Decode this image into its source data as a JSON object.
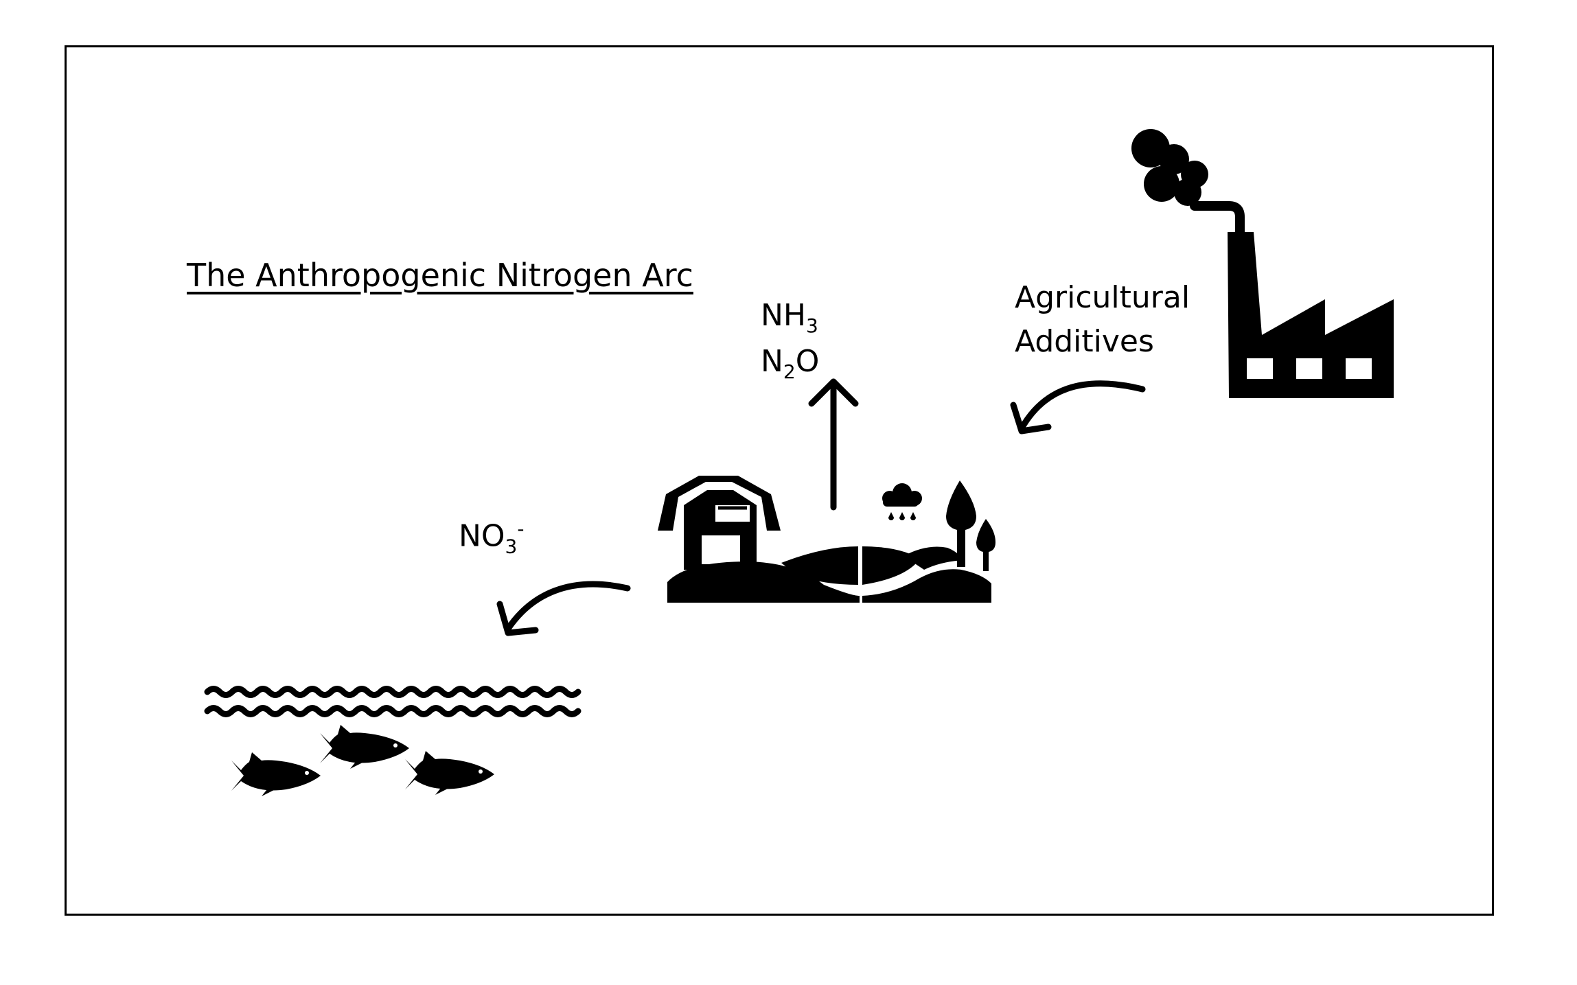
{
  "diagram": {
    "title": "The Anthropogenic Nitrogen Arc",
    "emissions": {
      "line1_base": "NH",
      "line1_sub": "3",
      "line2_pre": "N",
      "line2_sub": "2",
      "line2_post": "O"
    },
    "runoff": {
      "base": "NO",
      "sub": "3",
      "sup": "-"
    },
    "input": {
      "line1": "Agricultural",
      "line2": "Additives"
    },
    "icons": [
      "factory-icon",
      "farm-icon",
      "barn-icon",
      "rain-cloud-icon",
      "tree-icon",
      "water-waves-icon",
      "fish-icon"
    ],
    "colors": {
      "ink": "#000000",
      "background": "#ffffff"
    }
  }
}
